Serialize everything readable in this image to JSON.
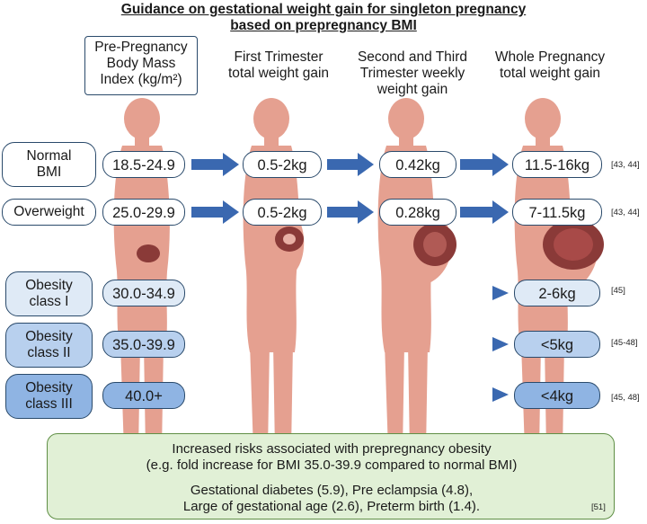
{
  "title_line1": "Guidance on gestational weight gain for singleton pregnancy",
  "title_line2": "based on prepregnancy BMI",
  "columns": {
    "bmi": [
      "Pre-Pregnancy",
      "Body Mass",
      "Index (kg/m²)"
    ],
    "first": [
      "First Trimester",
      "total weight gain"
    ],
    "second": [
      "Second and Third",
      "Trimester weekly",
      "weight gain"
    ],
    "whole": [
      "Whole Pregnancy",
      "total weight gain"
    ]
  },
  "rows": [
    {
      "label": [
        "Normal",
        "BMI"
      ],
      "bmi": "18.5-24.9",
      "first": "0.5-2kg",
      "weekly": "0.42kg",
      "total": "11.5-16kg",
      "ref": "[43, 44]"
    },
    {
      "label": [
        "Overweight"
      ],
      "bmi": "25.0-29.9",
      "first": "0.5-2kg",
      "weekly": "0.28kg",
      "total": "7-11.5kg",
      "ref": "[43, 44]"
    },
    {
      "label": [
        "Obesity",
        "class I"
      ],
      "bmi": "30.0-34.9",
      "total": "2-6kg",
      "ref": "[45]"
    },
    {
      "label": [
        "Obesity",
        "class II"
      ],
      "bmi": "35.0-39.9",
      "total": "<5kg",
      "ref": "[45-48]"
    },
    {
      "label": [
        "Obesity",
        "class III"
      ],
      "bmi": "40.0+",
      "total": "<4kg",
      "ref": "[45, 48]"
    }
  ],
  "risk": {
    "line1": "Increased risks associated with prepregnancy obesity",
    "line2": "(e.g. fold increase for BMI 35.0-39.9 compared to normal BMI)",
    "line3": "Gestational diabetes (5.9), Pre eclampsia (4.8),",
    "line4": "Large of gestational age (2.6), Preterm birth (1.4).",
    "ref": "[51]"
  },
  "colors": {
    "arrow": "#3a68b0",
    "figure": "#e5a090",
    "figure_shade": "#d48878",
    "uterus": "#8a3a38",
    "pill_border": "#2a4a6b"
  }
}
